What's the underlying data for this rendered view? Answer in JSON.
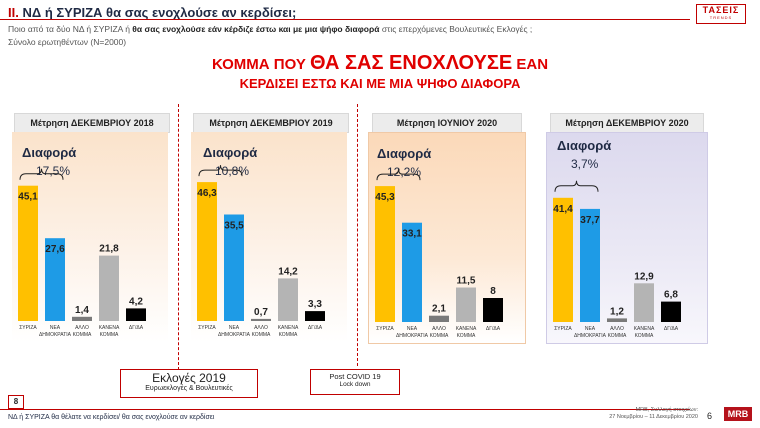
{
  "header": {
    "title_prefix": "II.",
    "title_main": "ΝΔ  ή ΣΥΡΙΖΑ θα σας ενοχλούσε αν κερδίσει;",
    "subtitle_plain": "Ποιο από τα δύο ΝΔ ή ΣΥΡΙΖΑ ή ",
    "subtitle_bold": "θα σας ενοχλούσε εάν κέρδιζε έστω και με μια ψήφο διαφορά",
    "subtitle_tail": " στις επερχόμενες Βουλευτικές Εκλογές ;",
    "sample": "Σύνολο ερωτηθέντων (Ν=2000)",
    "logo": "ΤΑΣΕΙΣ",
    "logo_sub": "TRENDS"
  },
  "headline": {
    "line1_a": "ΚΟΜΜΑ ΠΟΥ ",
    "line1_b": "ΘΑ ΣΑΣ ΕΝΟΧΛΟΥΣΕ",
    "line1_c": " ΕΑΝ",
    "line2": "ΚΕΡΔΙΣΕΙ ΕΣΤΩ ΚΑΙ ΜΕ ΜΙΑ ΨΗΦΟ ΔΙΑΦΟΡΑ"
  },
  "diff_label": "Διαφορά",
  "callouts": {
    "elections_title": "Εκλογές 2019",
    "elections_sub": "Ευρωεκλογές & Βουλευτικές",
    "covid_title": "Post  COVID 19",
    "covid_sub": "Lock down"
  },
  "colors": {
    "syriza": "#ffc000",
    "nd": "#1e9be6",
    "other": "#7a7a7a",
    "none": "#b4b4b4",
    "dk": "#000000",
    "accent": "#c00000"
  },
  "footer": {
    "page_num": "8",
    "note": "ΝΔ ή ΣΥΡΙΖΑ θα θέλατε να κερδίσει/ θα σας ενοχλούσε αν κερδίσει",
    "source_line1": "MRB, Συλλογή στοιχείων:",
    "source_line2": "27 Νοεμβρίου –  11 Δεκεμβρίου 2020",
    "slide_no": "6",
    "mrb_logo": "MRB"
  },
  "chart_data": [
    {
      "type": "bar",
      "title": "Μέτρηση ΔΕΚΕΜΒΡΙΟΥ 2018",
      "categories": [
        "ΣΥΡΙΖΑ",
        "ΝΕΑ ΔΗΜΟΚΡΑΤΙΑ",
        "ΑΛΛΟ ΚΟΜΜΑ",
        "ΚΑΝΕΝΑ ΚΟΜΜΑ",
        "ΔΓ/ΔΑ"
      ],
      "values": [
        45.1,
        27.6,
        1.4,
        21.8,
        4.2
      ],
      "labels": [
        "45,1",
        "27,6",
        "1,4",
        "21,8",
        "4,2"
      ],
      "diff": "17,5%",
      "ylim": [
        0,
        50
      ]
    },
    {
      "type": "bar",
      "title": "Μέτρηση ΔΕΚΕΜΒΡΙΟΥ 2019",
      "categories": [
        "ΣΥΡΙΖΑ",
        "ΝΕΑ ΔΗΜΟΚΡΑΤΙΑ",
        "ΑΛΛΟ ΚΟΜΜΑ",
        "ΚΑΝΕΝΑ ΚΟΜΜΑ",
        "ΔΓ/ΔΑ"
      ],
      "values": [
        46.3,
        35.5,
        0.7,
        14.2,
        3.3
      ],
      "labels": [
        "46,3",
        "35,5",
        "0,7",
        "14,2",
        "3,3"
      ],
      "diff": "10,8%",
      "ylim": [
        0,
        50
      ]
    },
    {
      "type": "bar",
      "title": "Μέτρηση ΙΟΥΝΙΟΥ 2020",
      "categories": [
        "ΣΥΡΙΖΑ",
        "ΝΕΑ ΔΗΜΟΚΡΑΤΙΑ",
        "ΑΛΛΟ ΚΟΜΜΑ",
        "ΚΑΝΕΝΑ ΚΟΜΜΑ",
        "ΔΓ/ΔΑ"
      ],
      "values": [
        45.3,
        33.1,
        2.1,
        11.5,
        8
      ],
      "labels": [
        "45,3",
        "33,1",
        "2,1",
        "11,5",
        "8"
      ],
      "diff": "12,2%",
      "ylim": [
        0,
        50
      ]
    },
    {
      "type": "bar",
      "title": "Μέτρηση ΔΕΚΕΜΒΡΙΟΥ 2020",
      "categories": [
        "ΣΥΡΙΖΑ",
        "ΝΕΑ ΔΗΜΟΚΡΑΤΙΑ",
        "ΑΛΛΟ ΚΟΜΜΑ",
        "ΚΑΝΕΝΑ ΚΟΜΜΑ",
        "ΔΓ/ΔΑ"
      ],
      "values": [
        41.4,
        37.7,
        1.2,
        12.9,
        6.8
      ],
      "labels": [
        "41,4",
        "37,7",
        "1,2",
        "12,9",
        "6,8"
      ],
      "diff": "3,7%",
      "ylim": [
        0,
        50
      ]
    }
  ]
}
